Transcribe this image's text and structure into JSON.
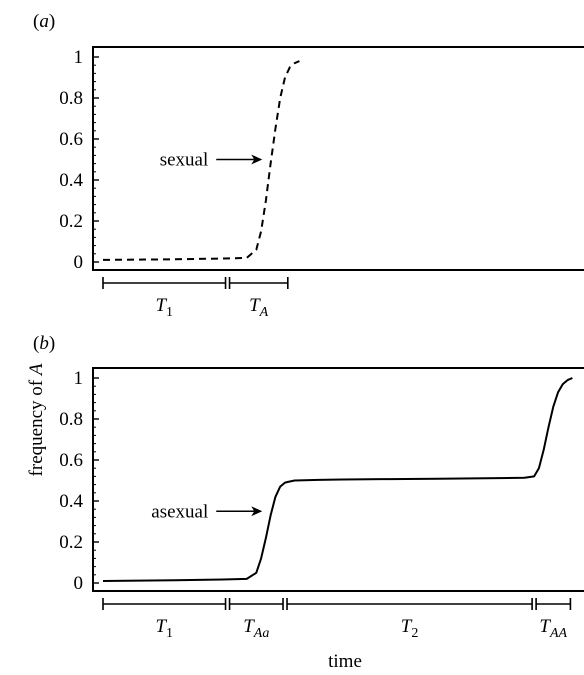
{
  "chart_data": [
    {
      "type": "line",
      "panel_label": "(a)",
      "ylabel": "frequency of A",
      "ylim": [
        0,
        1
      ],
      "yticks": [
        "0",
        "0.2",
        "0.4",
        "0.6",
        "0.8",
        "1"
      ],
      "grid": false,
      "series": [
        {
          "style": "dashed",
          "x": [
            0,
            0.05,
            0.1,
            0.15,
            0.2,
            0.25,
            0.3,
            0.32,
            0.33,
            0.34,
            0.35,
            0.36,
            0.37,
            0.38,
            0.39,
            0.4,
            0.41
          ],
          "y": [
            0.01,
            0.011,
            0.012,
            0.013,
            0.015,
            0.017,
            0.02,
            0.06,
            0.15,
            0.3,
            0.48,
            0.65,
            0.8,
            0.9,
            0.95,
            0.97,
            0.98
          ]
        }
      ],
      "annotations": [
        {
          "text": "sexual",
          "arrow_to_x": 0.345,
          "arrow_to_y": 0.5
        }
      ],
      "intervals": [
        {
          "label": "T",
          "sub": "1",
          "x0": 0.0,
          "x1": 0.26
        },
        {
          "label": "T",
          "sub": "A",
          "x0": 0.26,
          "x1": 0.39
        }
      ]
    },
    {
      "type": "line",
      "panel_label": "(b)",
      "xlabel": "time",
      "ylabel": "frequency of A",
      "ylim": [
        0,
        1
      ],
      "yticks": [
        "0",
        "0.2",
        "0.4",
        "0.6",
        "0.8",
        "1"
      ],
      "grid": false,
      "series": [
        {
          "style": "solid",
          "x": [
            0,
            0.05,
            0.1,
            0.15,
            0.2,
            0.25,
            0.3,
            0.32,
            0.33,
            0.34,
            0.35,
            0.36,
            0.37,
            0.38,
            0.39,
            0.4,
            0.45,
            0.5,
            0.6,
            0.7,
            0.8,
            0.88,
            0.9,
            0.91,
            0.92,
            0.93,
            0.94,
            0.95,
            0.96,
            0.97,
            0.98
          ],
          "y": [
            0.01,
            0.011,
            0.012,
            0.013,
            0.015,
            0.017,
            0.02,
            0.05,
            0.12,
            0.22,
            0.33,
            0.42,
            0.47,
            0.49,
            0.495,
            0.5,
            0.503,
            0.505,
            0.507,
            0.509,
            0.511,
            0.513,
            0.52,
            0.56,
            0.65,
            0.76,
            0.86,
            0.93,
            0.97,
            0.99,
            1.0
          ]
        }
      ],
      "annotations": [
        {
          "text": "asexual",
          "arrow_to_x": 0.345,
          "arrow_to_y": 0.35
        }
      ],
      "intervals": [
        {
          "label": "T",
          "sub": "1",
          "x0": 0.0,
          "x1": 0.26
        },
        {
          "label": "T",
          "sub": "Aa",
          "x0": 0.26,
          "x1": 0.38
        },
        {
          "label": "T",
          "sub": "2",
          "x0": 0.38,
          "x1": 0.9
        },
        {
          "label": "T",
          "sub": "AA",
          "x0": 0.9,
          "x1": 0.98
        }
      ]
    }
  ]
}
